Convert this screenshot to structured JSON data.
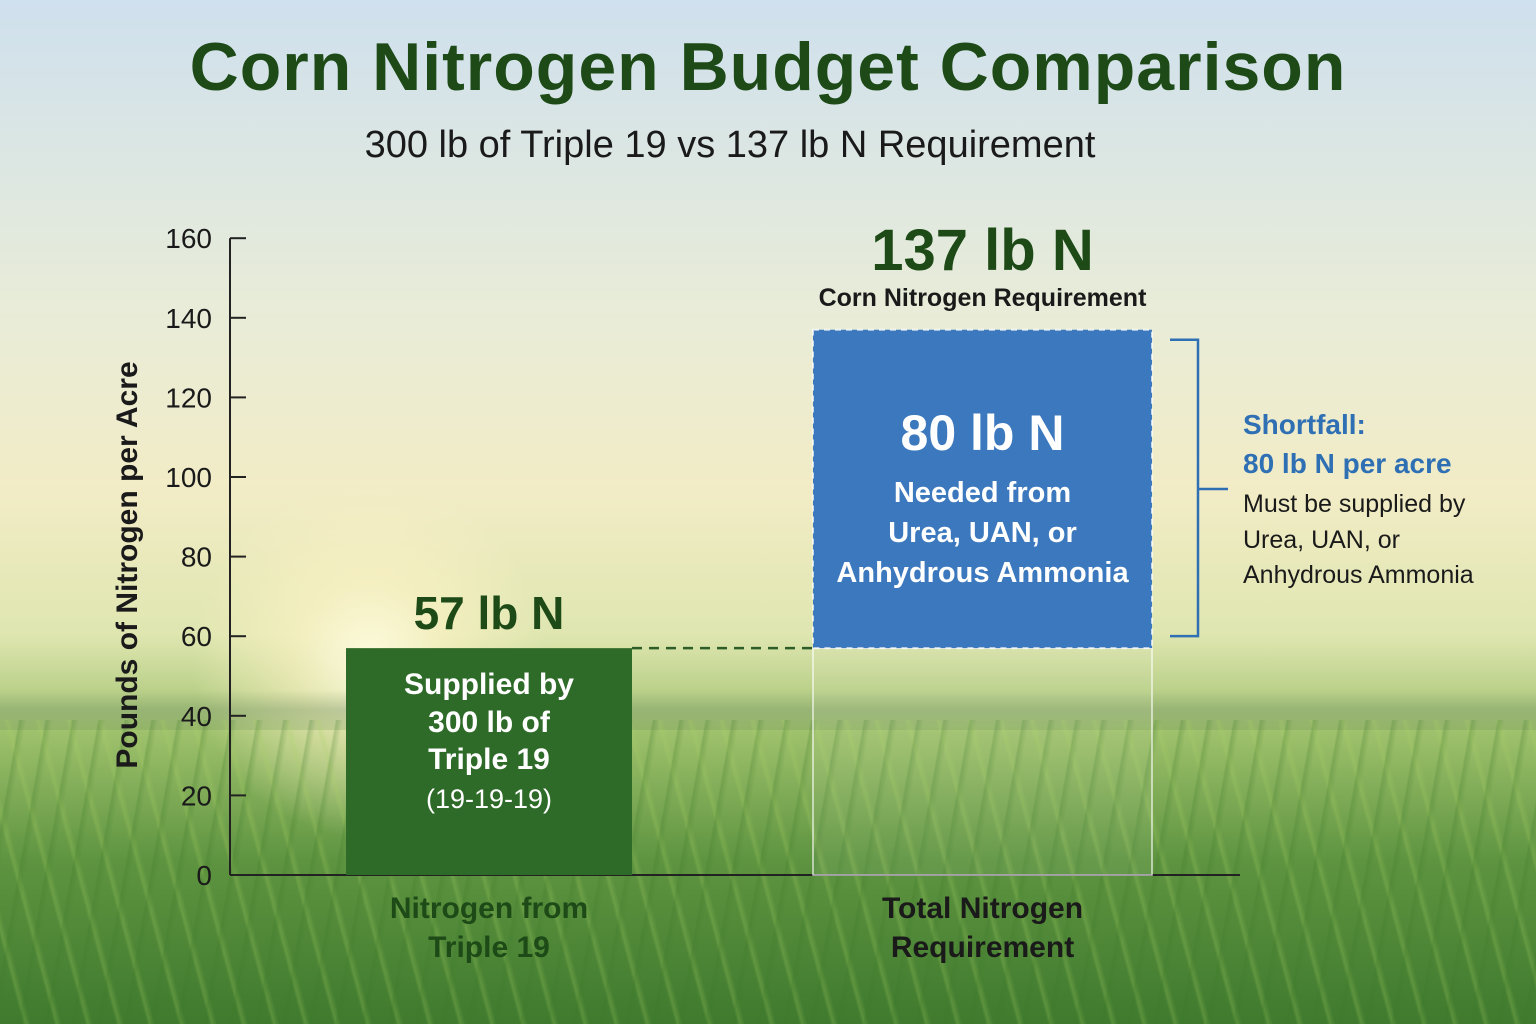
{
  "title": "Corn Nitrogen Budget Comparison",
  "subtitle": "300 lb of Triple 19 vs 137 lb N Requirement",
  "colors": {
    "supplied": "#2e6b28",
    "needed": "#3b78bd",
    "title": "#1d4a17",
    "accent_blue": "#2f6fb3"
  },
  "chart_data": {
    "type": "bar",
    "title": "Corn Nitrogen Budget Comparison",
    "subtitle": "300 lb of Triple 19 vs 137 lb N Requirement",
    "ylabel": "Pounds of Nitrogen per Acre",
    "xlabel": "",
    "ylim": [
      0,
      160
    ],
    "yticks": [
      0,
      20,
      40,
      60,
      80,
      100,
      120,
      140,
      160
    ],
    "categories": [
      "Nitrogen from\nTriple 19",
      "Total Nitrogen\nRequirement"
    ],
    "category_lines": [
      [
        "Nitrogen from",
        "Triple 19"
      ],
      [
        "Total Nitrogen",
        "Requirement"
      ]
    ],
    "stacked": true,
    "series": [
      {
        "values": [
          57,
          57
        ],
        "segment_text": [
          "Supplied by\n300 lb of\nTriple 19",
          ""
        ],
        "segment_note": [
          "(19-19-19)",
          ""
        ]
      },
      {
        "values": [
          0,
          80
        ],
        "segment_text": [
          "",
          "80 lb N"
        ],
        "segment_note": [
          "",
          "Needed from\nUrea, UAN, or\nAnhydrous Ammonia"
        ]
      }
    ],
    "bar_labels": [
      "57 lb N",
      "137 lb N"
    ],
    "bar_sublabels": [
      "",
      "Corn Nitrogen Requirement"
    ],
    "annotation": {
      "title_line1": "Shortfall:",
      "title_line2": "80 lb N per acre",
      "note": "Must be supplied by\nUrea, UAN, or\nAnhydrous Ammonia"
    },
    "grid": false,
    "legend": "none"
  }
}
